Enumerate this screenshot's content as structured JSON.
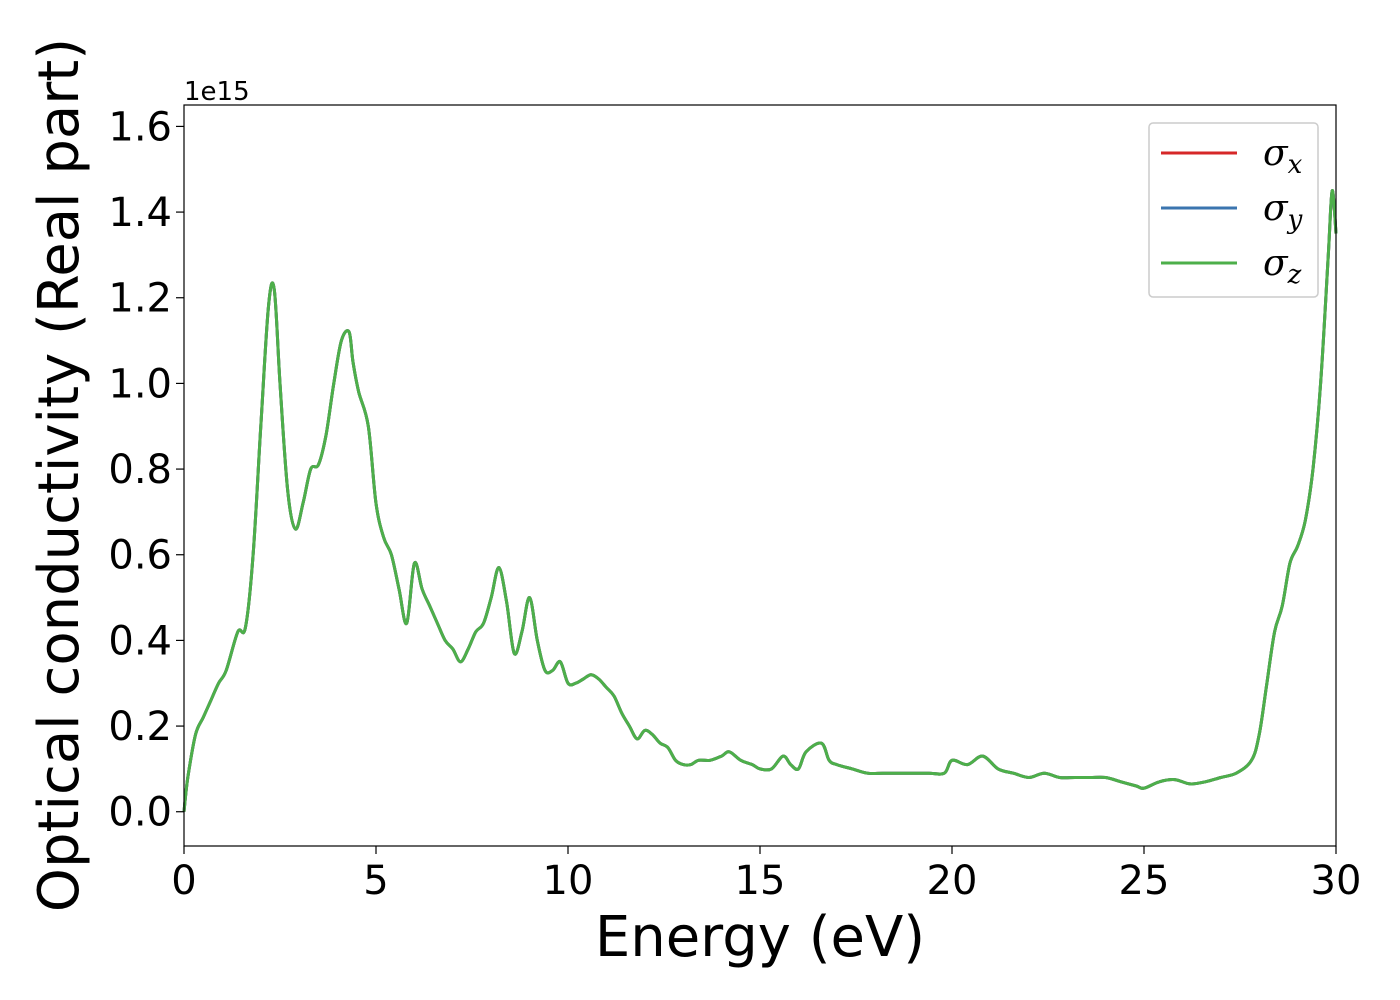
{
  "chart_data": {
    "type": "line",
    "xlabel": "Energy (eV)",
    "ylabel": "Optical conductivity (Real part)",
    "y_offset_label": "1e15",
    "xlim": [
      0,
      30
    ],
    "ylim": [
      -0.08,
      1.65
    ],
    "x_ticks": [
      0,
      5,
      10,
      15,
      20,
      25,
      30
    ],
    "x_tick_labels": [
      "0",
      "5",
      "10",
      "15",
      "20",
      "25",
      "30"
    ],
    "y_ticks": [
      0.0,
      0.2,
      0.4,
      0.6,
      0.8,
      1.0,
      1.2,
      1.4,
      1.6
    ],
    "y_tick_labels": [
      "0.0",
      "0.2",
      "0.4",
      "0.6",
      "0.8",
      "1.0",
      "1.2",
      "1.4",
      "1.6"
    ],
    "grid": false,
    "legend_position": "top-right",
    "series": [
      {
        "name": "σx",
        "symbol": "σ",
        "subscript": "x",
        "color": "#d62728",
        "same_data_as": "σz"
      },
      {
        "name": "σy",
        "symbol": "σ",
        "subscript": "y",
        "color": "#3b75af",
        "same_data_as": "σz"
      },
      {
        "name": "σz",
        "symbol": "σ",
        "subscript": "z",
        "color": "#4daf4a",
        "x": [
          0,
          0.1,
          0.3,
          0.5,
          0.7,
          0.9,
          1.1,
          1.4,
          1.6,
          1.8,
          2.0,
          2.2,
          2.35,
          2.5,
          2.7,
          2.9,
          3.1,
          3.3,
          3.5,
          3.7,
          3.9,
          4.1,
          4.3,
          4.4,
          4.55,
          4.8,
          5.0,
          5.2,
          5.4,
          5.6,
          5.8,
          6.0,
          6.2,
          6.4,
          6.6,
          6.8,
          7.0,
          7.2,
          7.4,
          7.6,
          7.8,
          8.0,
          8.2,
          8.4,
          8.6,
          8.8,
          9.0,
          9.2,
          9.4,
          9.6,
          9.8,
          10.0,
          10.2,
          10.4,
          10.6,
          10.8,
          11.0,
          11.2,
          11.4,
          11.6,
          11.8,
          12.0,
          12.2,
          12.4,
          12.6,
          12.8,
          13.0,
          13.2,
          13.4,
          13.7,
          14.0,
          14.2,
          14.5,
          14.8,
          15.0,
          15.3,
          15.6,
          15.8,
          16.0,
          16.2,
          16.6,
          16.8,
          17.0,
          17.4,
          17.8,
          18.2,
          18.6,
          19.0,
          19.4,
          19.8,
          20.0,
          20.4,
          20.8,
          21.2,
          21.6,
          22.0,
          22.4,
          22.8,
          23.2,
          23.6,
          24.0,
          24.4,
          24.8,
          25.0,
          25.4,
          25.8,
          26.2,
          26.6,
          27.0,
          27.4,
          27.8,
          28.0,
          28.2,
          28.4,
          28.6,
          28.8,
          29.0,
          29.2,
          29.4,
          29.6,
          29.8,
          29.9,
          30.0
        ],
        "y": [
          0.0,
          0.08,
          0.18,
          0.22,
          0.26,
          0.3,
          0.33,
          0.42,
          0.43,
          0.6,
          0.9,
          1.18,
          1.22,
          1.0,
          0.75,
          0.66,
          0.72,
          0.8,
          0.81,
          0.88,
          1.0,
          1.1,
          1.12,
          1.05,
          0.98,
          0.9,
          0.72,
          0.64,
          0.6,
          0.52,
          0.44,
          0.58,
          0.52,
          0.48,
          0.44,
          0.4,
          0.38,
          0.35,
          0.38,
          0.42,
          0.44,
          0.5,
          0.57,
          0.49,
          0.37,
          0.42,
          0.5,
          0.4,
          0.33,
          0.33,
          0.35,
          0.3,
          0.3,
          0.31,
          0.32,
          0.31,
          0.29,
          0.27,
          0.23,
          0.2,
          0.17,
          0.19,
          0.18,
          0.16,
          0.15,
          0.12,
          0.11,
          0.11,
          0.12,
          0.12,
          0.13,
          0.14,
          0.12,
          0.11,
          0.1,
          0.1,
          0.13,
          0.11,
          0.1,
          0.14,
          0.16,
          0.12,
          0.11,
          0.1,
          0.09,
          0.09,
          0.09,
          0.09,
          0.09,
          0.09,
          0.12,
          0.11,
          0.13,
          0.1,
          0.09,
          0.08,
          0.09,
          0.08,
          0.08,
          0.08,
          0.08,
          0.07,
          0.06,
          0.055,
          0.07,
          0.075,
          0.065,
          0.07,
          0.08,
          0.09,
          0.12,
          0.18,
          0.3,
          0.42,
          0.48,
          0.58,
          0.62,
          0.68,
          0.8,
          1.0,
          1.3,
          1.45,
          1.35
        ]
      }
    ]
  }
}
